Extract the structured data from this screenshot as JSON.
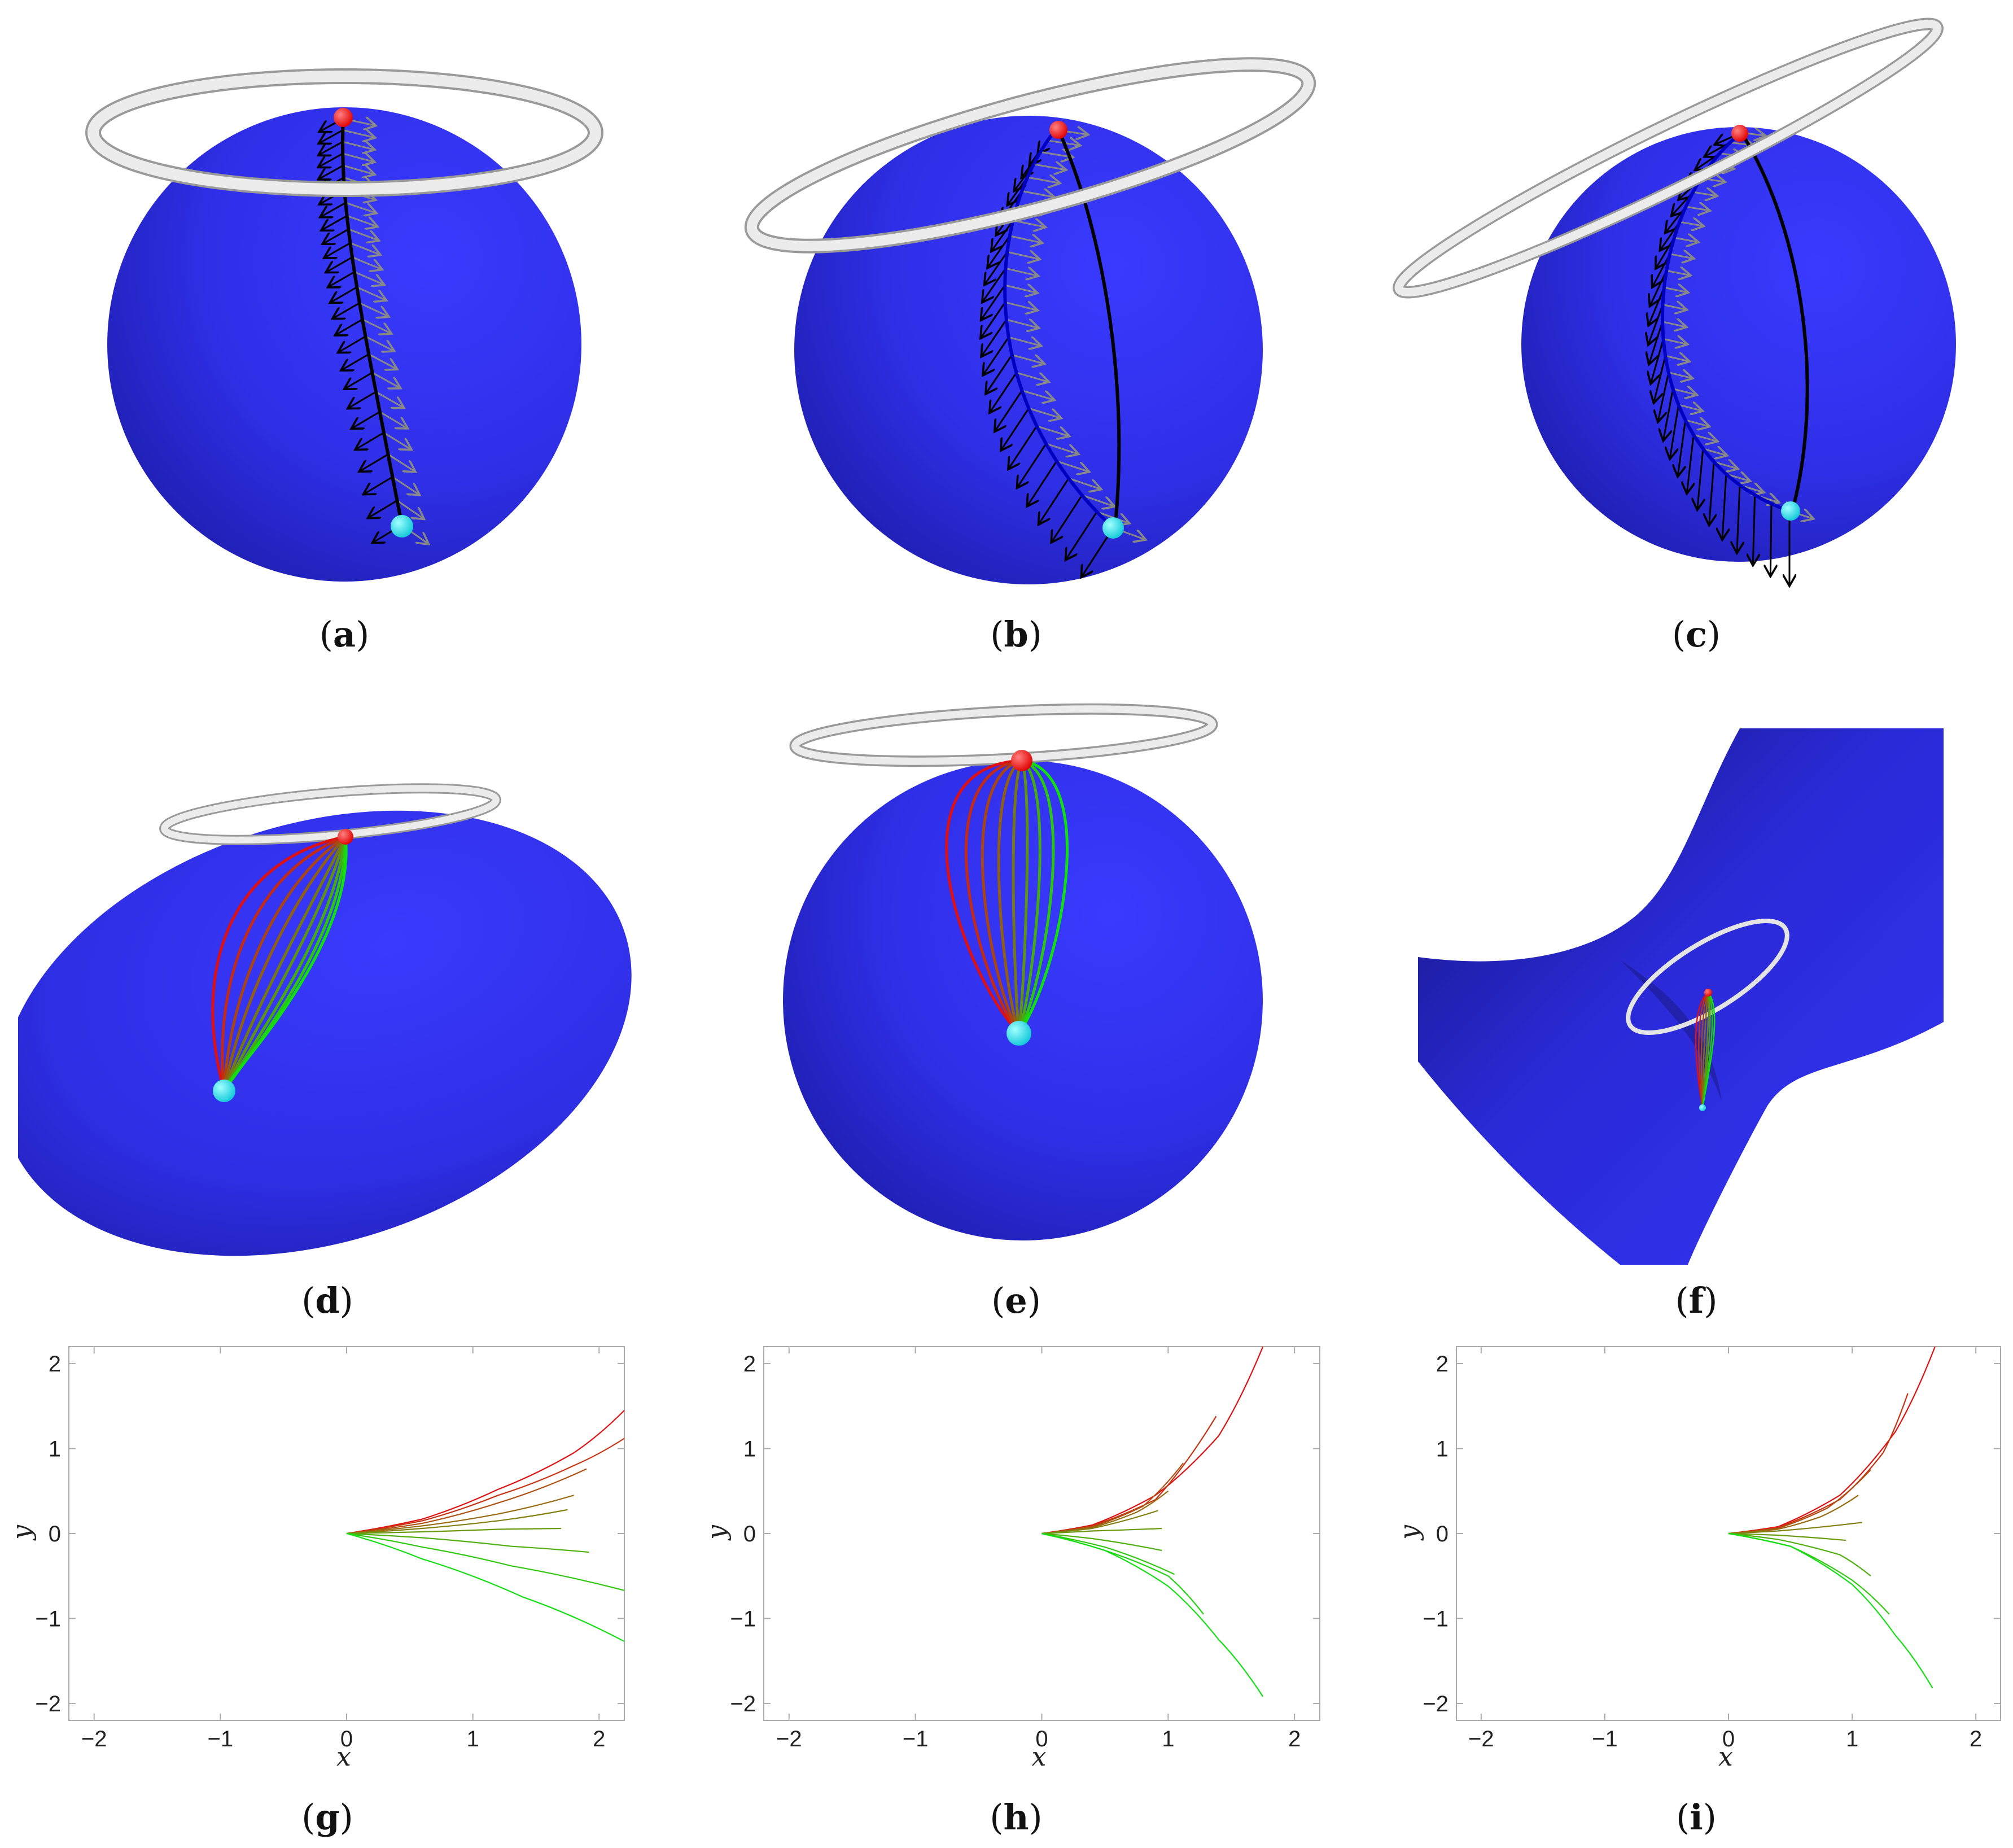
{
  "panels": [
    {
      "id": "a",
      "letter": "a"
    },
    {
      "id": "b",
      "letter": "b"
    },
    {
      "id": "c",
      "letter": "c"
    },
    {
      "id": "d",
      "letter": "d"
    },
    {
      "id": "e",
      "letter": "e"
    },
    {
      "id": "f",
      "letter": "f"
    },
    {
      "id": "g",
      "letter": "g"
    },
    {
      "id": "h",
      "letter": "h"
    },
    {
      "id": "i",
      "letter": "i"
    }
  ],
  "colors": {
    "surface": "#2f2fe8",
    "surface_dark": "#161680",
    "ring": "#e6e6e6",
    "start_point": "#ff1010",
    "end_point": "#18d8e8",
    "curve_red": "#e01010",
    "curve_green": "#10e010",
    "arrow_black": "#000000",
    "arrow_gray": "#888888"
  },
  "chart_data": [
    {
      "panel": "g",
      "type": "line",
      "xlabel": "x",
      "ylabel": "y",
      "xlim": [
        -2.2,
        2.2
      ],
      "ylim": [
        -2.2,
        2.2
      ],
      "xticks": [
        -2,
        -1,
        0,
        1,
        2
      ],
      "yticks": [
        -2,
        -1,
        0,
        1,
        2
      ],
      "series": [
        {
          "color": "#e01010",
          "points": [
            [
              0,
              0
            ],
            [
              0.6,
              0.17
            ],
            [
              1.2,
              0.52
            ],
            [
              1.8,
              0.95
            ],
            [
              2.2,
              1.45
            ]
          ]
        },
        {
          "color": "#c83210",
          "points": [
            [
              0,
              0
            ],
            [
              0.6,
              0.15
            ],
            [
              1.2,
              0.45
            ],
            [
              1.8,
              0.8
            ],
            [
              2.2,
              1.12
            ]
          ]
        },
        {
          "color": "#b05010",
          "points": [
            [
              0,
              0
            ],
            [
              0.6,
              0.12
            ],
            [
              1.2,
              0.36
            ],
            [
              1.9,
              0.76
            ]
          ]
        },
        {
          "color": "#986a10",
          "points": [
            [
              0,
              0
            ],
            [
              0.6,
              0.09
            ],
            [
              1.2,
              0.23
            ],
            [
              1.8,
              0.45
            ]
          ]
        },
        {
          "color": "#828010",
          "points": [
            [
              0,
              0
            ],
            [
              0.6,
              0.06
            ],
            [
              1.2,
              0.15
            ],
            [
              1.75,
              0.28
            ]
          ]
        },
        {
          "color": "#6a9a10",
          "points": [
            [
              0,
              0
            ],
            [
              0.6,
              0.02
            ],
            [
              1.2,
              0.05
            ],
            [
              1.7,
              0.06
            ]
          ]
        },
        {
          "color": "#50b010",
          "points": [
            [
              0,
              0
            ],
            [
              0.6,
              -0.05
            ],
            [
              1.3,
              -0.15
            ],
            [
              1.92,
              -0.22
            ]
          ]
        },
        {
          "color": "#30c810",
          "points": [
            [
              0,
              0
            ],
            [
              0.6,
              -0.16
            ],
            [
              1.3,
              -0.38
            ],
            [
              2.2,
              -0.67
            ]
          ]
        },
        {
          "color": "#10e010",
          "points": [
            [
              0,
              0
            ],
            [
              0.6,
              -0.3
            ],
            [
              1.4,
              -0.75
            ],
            [
              2.2,
              -1.27
            ]
          ]
        }
      ]
    },
    {
      "panel": "h",
      "type": "line",
      "xlabel": "x",
      "ylabel": "y",
      "xlim": [
        -2.2,
        2.2
      ],
      "ylim": [
        -2.2,
        2.2
      ],
      "xticks": [
        -2,
        -1,
        0,
        1,
        2
      ],
      "yticks": [
        -2,
        -1,
        0,
        1,
        2
      ],
      "series": [
        {
          "color": "#e01010",
          "points": [
            [
              0,
              0
            ],
            [
              0.4,
              0.1
            ],
            [
              0.9,
              0.45
            ],
            [
              1.4,
              1.15
            ],
            [
              1.75,
              2.2
            ]
          ]
        },
        {
          "color": "#c83210",
          "points": [
            [
              0,
              0
            ],
            [
              0.4,
              0.09
            ],
            [
              0.9,
              0.4
            ],
            [
              1.38,
              1.38
            ]
          ]
        },
        {
          "color": "#b05010",
          "points": [
            [
              0,
              0
            ],
            [
              0.4,
              0.08
            ],
            [
              0.8,
              0.32
            ],
            [
              1.12,
              0.83
            ]
          ]
        },
        {
          "color": "#986a10",
          "points": [
            [
              0,
              0
            ],
            [
              0.4,
              0.07
            ],
            [
              0.75,
              0.25
            ],
            [
              1.0,
              0.5
            ]
          ]
        },
        {
          "color": "#828010",
          "points": [
            [
              0,
              0
            ],
            [
              0.4,
              0.06
            ],
            [
              0.92,
              0.27
            ]
          ]
        },
        {
          "color": "#6a9a10",
          "points": [
            [
              0,
              0
            ],
            [
              0.4,
              0.03
            ],
            [
              0.95,
              0.06
            ]
          ]
        },
        {
          "color": "#50b010",
          "points": [
            [
              0,
              0
            ],
            [
              0.4,
              -0.06
            ],
            [
              0.95,
              -0.2
            ]
          ]
        },
        {
          "color": "#30c810",
          "points": [
            [
              0,
              0
            ],
            [
              0.5,
              -0.16
            ],
            [
              1.05,
              -0.48
            ]
          ]
        },
        {
          "color": "#20d410",
          "points": [
            [
              0,
              0
            ],
            [
              0.5,
              -0.2
            ],
            [
              1.0,
              -0.5
            ],
            [
              1.28,
              -0.95
            ]
          ]
        },
        {
          "color": "#10e010",
          "points": [
            [
              0,
              0
            ],
            [
              0.5,
              -0.2
            ],
            [
              1.0,
              -0.62
            ],
            [
              1.4,
              -1.25
            ],
            [
              1.75,
              -1.92
            ]
          ]
        }
      ]
    },
    {
      "panel": "i",
      "type": "line",
      "xlabel": "x",
      "ylabel": "y",
      "xlim": [
        -2.2,
        2.2
      ],
      "ylim": [
        -2.2,
        2.2
      ],
      "xticks": [
        -2,
        -1,
        0,
        1,
        2
      ],
      "yticks": [
        -2,
        -1,
        0,
        1,
        2
      ],
      "series": [
        {
          "color": "#e01010",
          "points": [
            [
              0,
              0
            ],
            [
              0.4,
              0.08
            ],
            [
              0.9,
              0.45
            ],
            [
              1.35,
              1.2
            ],
            [
              1.67,
              2.2
            ]
          ]
        },
        {
          "color": "#c83210",
          "points": [
            [
              0,
              0
            ],
            [
              0.4,
              0.07
            ],
            [
              0.9,
              0.4
            ],
            [
              1.25,
              0.95
            ],
            [
              1.45,
              1.65
            ]
          ]
        },
        {
          "color": "#b05010",
          "points": [
            [
              0,
              0
            ],
            [
              0.4,
              0.06
            ],
            [
              0.8,
              0.3
            ],
            [
              1.15,
              0.75
            ]
          ]
        },
        {
          "color": "#986a10",
          "points": [
            [
              0,
              0
            ],
            [
              0.4,
              0.05
            ],
            [
              0.75,
              0.2
            ],
            [
              1.05,
              0.45
            ]
          ]
        },
        {
          "color": "#828010",
          "points": [
            [
              0,
              0
            ],
            [
              0.4,
              0.03
            ],
            [
              1.08,
              0.13
            ]
          ]
        },
        {
          "color": "#6a9a10",
          "points": [
            [
              0,
              0
            ],
            [
              0.4,
              -0.02
            ],
            [
              0.95,
              -0.08
            ]
          ]
        },
        {
          "color": "#50b010",
          "points": [
            [
              0,
              0
            ],
            [
              0.4,
              -0.07
            ],
            [
              0.9,
              -0.25
            ],
            [
              1.15,
              -0.5
            ]
          ]
        },
        {
          "color": "#30c810",
          "points": [
            [
              0,
              0
            ],
            [
              0.5,
              -0.15
            ],
            [
              1.0,
              -0.55
            ],
            [
              1.3,
              -0.95
            ]
          ]
        },
        {
          "color": "#10e010",
          "points": [
            [
              0,
              0
            ],
            [
              0.5,
              -0.15
            ],
            [
              1.0,
              -0.6
            ],
            [
              1.35,
              -1.2
            ],
            [
              1.65,
              -1.82
            ]
          ]
        }
      ]
    }
  ]
}
